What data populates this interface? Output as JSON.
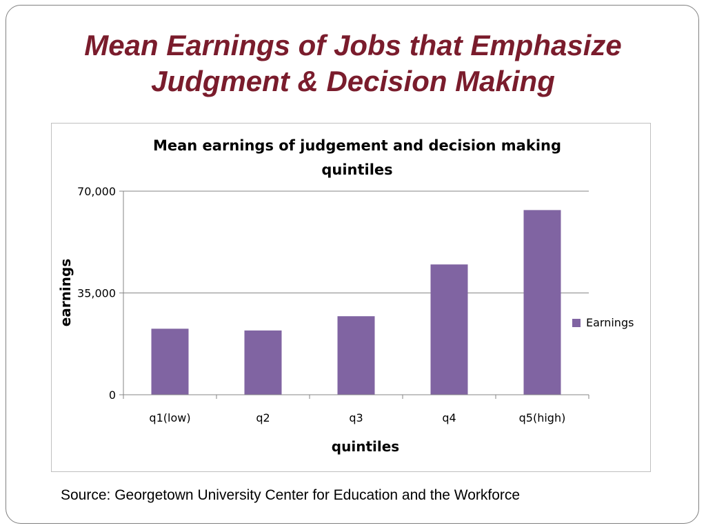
{
  "slide": {
    "title_line1": "Mean Earnings of Jobs that Emphasize",
    "title_line2": "Judgment & Decision Making",
    "source": "Source: Georgetown University Center for Education and the Workforce"
  },
  "colors": {
    "title": "#7a1c2c",
    "bar": "#8064a2",
    "grid": "#868686"
  },
  "chart_data": {
    "type": "bar",
    "title_line1": "Mean earnings of judgement and decision making",
    "title_line2": "quintiles",
    "xlabel": "quintiles",
    "ylabel": "earnings",
    "categories": [
      "q1(low)",
      "q2",
      "q3",
      "q4",
      "q5(high)"
    ],
    "series": [
      {
        "name": "Earnings",
        "values": [
          22700,
          22100,
          27000,
          44800,
          63500
        ]
      }
    ],
    "ylim": [
      0,
      70000
    ],
    "yticks": [
      0,
      35000,
      70000
    ],
    "ytick_labels": [
      "0",
      "35,000",
      "70,000"
    ],
    "grid": true,
    "legend": "right"
  }
}
